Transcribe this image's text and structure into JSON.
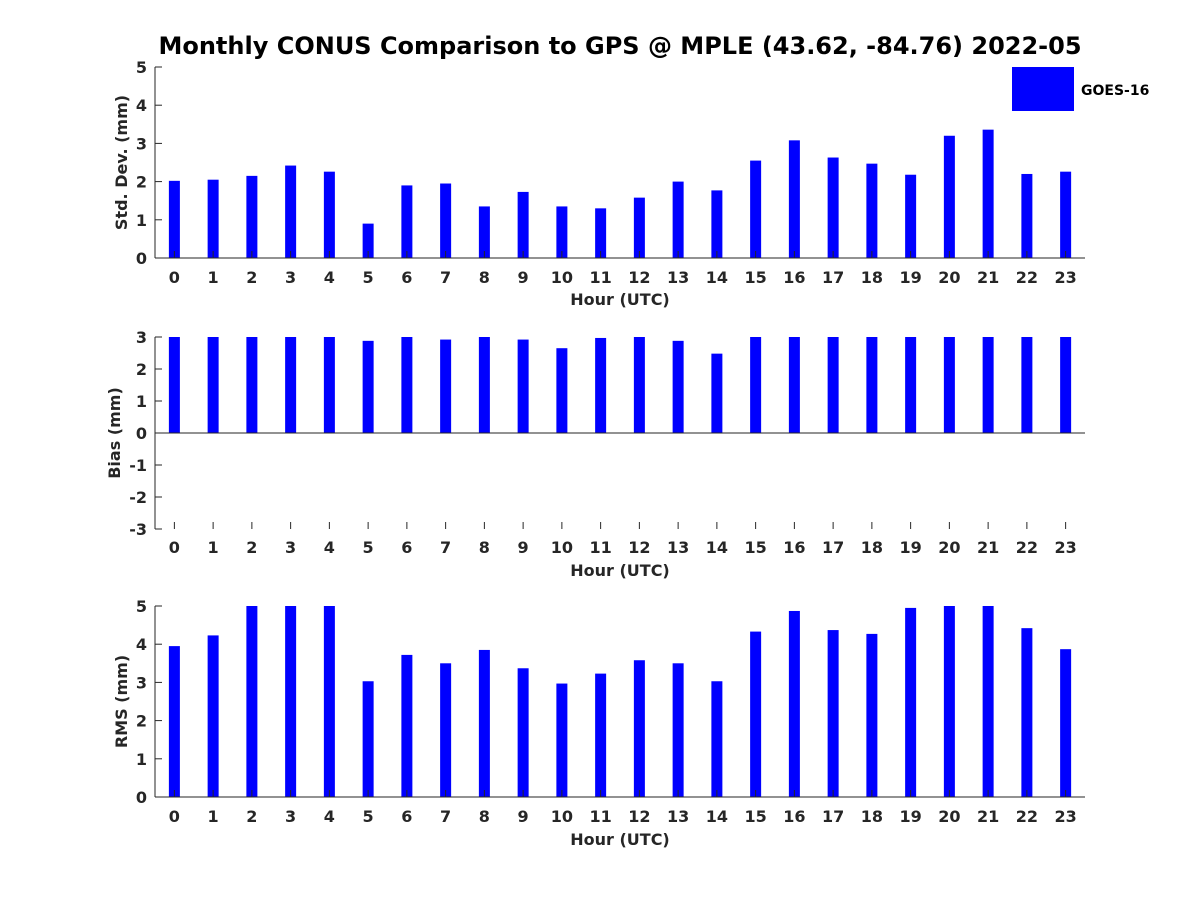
{
  "title": "Monthly CONUS Comparison to GPS @ MPLE (43.62, -84.76) 2022-05",
  "colors": {
    "bar": "#0000ff",
    "axis": "#262626"
  },
  "legend": {
    "label": "GOES-16",
    "placement": "top-right"
  },
  "chart_data": [
    {
      "type": "bar",
      "series": [
        {
          "name": "GOES-16"
        }
      ],
      "categories": [
        "0",
        "1",
        "2",
        "3",
        "4",
        "5",
        "6",
        "7",
        "8",
        "9",
        "10",
        "11",
        "12",
        "13",
        "14",
        "15",
        "16",
        "17",
        "18",
        "19",
        "20",
        "21",
        "22",
        "23"
      ],
      "values": [
        2.02,
        2.05,
        2.15,
        2.42,
        2.26,
        0.9,
        1.9,
        1.95,
        1.35,
        1.73,
        1.35,
        1.3,
        1.58,
        2.0,
        1.77,
        2.55,
        3.08,
        2.63,
        2.47,
        2.18,
        3.2,
        3.36,
        2.2,
        2.26
      ],
      "xlabel": "Hour (UTC)",
      "ylabel": "Std. Dev. (mm)",
      "ylim": [
        0,
        5
      ],
      "yticks": [
        "0",
        "1",
        "2",
        "3",
        "4",
        "5"
      ],
      "grid": false
    },
    {
      "type": "bar",
      "series": [
        {
          "name": "GOES-16"
        }
      ],
      "categories": [
        "0",
        "1",
        "2",
        "3",
        "4",
        "5",
        "6",
        "7",
        "8",
        "9",
        "10",
        "11",
        "12",
        "13",
        "14",
        "15",
        "16",
        "17",
        "18",
        "19",
        "20",
        "21",
        "22",
        "23"
      ],
      "values": [
        3.0,
        3.0,
        3.0,
        3.0,
        3.0,
        2.88,
        3.0,
        2.92,
        3.0,
        2.92,
        2.65,
        2.97,
        3.0,
        2.88,
        2.48,
        3.0,
        3.0,
        3.0,
        3.0,
        3.0,
        3.0,
        3.0,
        3.0,
        3.0
      ],
      "xlabel": "Hour (UTC)",
      "ylabel": "Bias (mm)",
      "ylim": [
        -3,
        3
      ],
      "yticks": [
        "-3",
        "-2",
        "-1",
        "0",
        "1",
        "2",
        "3"
      ],
      "grid": false
    },
    {
      "type": "bar",
      "series": [
        {
          "name": "GOES-16"
        }
      ],
      "categories": [
        "0",
        "1",
        "2",
        "3",
        "4",
        "5",
        "6",
        "7",
        "8",
        "9",
        "10",
        "11",
        "12",
        "13",
        "14",
        "15",
        "16",
        "17",
        "18",
        "19",
        "20",
        "21",
        "22",
        "23"
      ],
      "values": [
        3.95,
        4.23,
        5.0,
        5.0,
        5.0,
        3.03,
        3.72,
        3.5,
        3.85,
        3.37,
        2.97,
        3.23,
        3.58,
        3.5,
        3.03,
        4.33,
        4.87,
        4.37,
        4.27,
        4.95,
        5.0,
        5.0,
        4.42,
        3.87
      ],
      "xlabel": "Hour (UTC)",
      "ylabel": "RMS (mm)",
      "ylim": [
        0,
        5
      ],
      "yticks": [
        "0",
        "1",
        "2",
        "3",
        "4",
        "5"
      ],
      "grid": false
    }
  ]
}
